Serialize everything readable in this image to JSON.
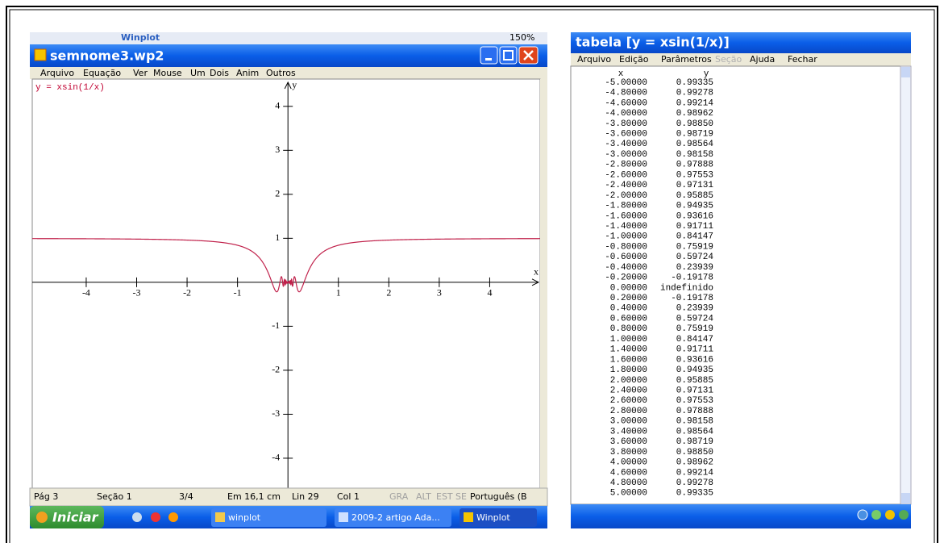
{
  "toolbar": {
    "app": "Winplot",
    "zoom": "150%"
  },
  "winplot": {
    "title": "semnome3.wp2",
    "menu": [
      "Arquivo",
      "Equação",
      "Ver",
      "Mouse",
      "Um",
      "Dois",
      "Anim",
      "Outros"
    ],
    "equation": "y = xsin(1/x)",
    "x_axis_label": "x",
    "y_axis_label": "y",
    "xlim": [
      -5.07,
      5.0
    ],
    "ylim": [
      -4.68,
      4.62
    ],
    "xticks": [
      -4,
      -3,
      -2,
      -1,
      1,
      2,
      3,
      4
    ],
    "yticks": [
      -4,
      -3,
      -2,
      -1,
      1,
      2,
      3,
      4
    ]
  },
  "status_bar": [
    "Pág 3",
    "Seção 1",
    "3/4",
    "Em 16,1 cm",
    "Lin 29",
    "Col 1",
    "GRA",
    "ALT",
    "EST",
    "SE",
    "Português (B"
  ],
  "taskbar": {
    "start": "Iniciar",
    "tasks": [
      "winplot",
      "2009-2 artigo Ada...",
      "Winplot"
    ]
  },
  "table_window": {
    "title": "tabela [y = xsin(1/x)]",
    "menu": [
      "Arquivo",
      "Edição",
      "Parâmetros",
      "Seção",
      "Ajuda",
      "Fechar"
    ],
    "columns": [
      "x",
      "y"
    ],
    "rows": [
      [
        "-5.00000",
        "0.99335"
      ],
      [
        "-4.80000",
        "0.99278"
      ],
      [
        "-4.60000",
        "0.99214"
      ],
      [
        "-4.00000",
        "0.98962"
      ],
      [
        "-3.80000",
        "0.98850"
      ],
      [
        "-3.60000",
        "0.98719"
      ],
      [
        "-3.40000",
        "0.98564"
      ],
      [
        "-3.00000",
        "0.98158"
      ],
      [
        "-2.80000",
        "0.97888"
      ],
      [
        "-2.60000",
        "0.97553"
      ],
      [
        "-2.40000",
        "0.97131"
      ],
      [
        "-2.00000",
        "0.95885"
      ],
      [
        "-1.80000",
        "0.94935"
      ],
      [
        "-1.60000",
        "0.93616"
      ],
      [
        "-1.40000",
        "0.91711"
      ],
      [
        "-1.00000",
        "0.84147"
      ],
      [
        "-0.80000",
        "0.75919"
      ],
      [
        "-0.60000",
        "0.59724"
      ],
      [
        "-0.40000",
        "0.23939"
      ],
      [
        "-0.20000",
        "-0.19178"
      ],
      [
        "0.00000",
        "indefinido"
      ],
      [
        "0.20000",
        "-0.19178"
      ],
      [
        "0.40000",
        "0.23939"
      ],
      [
        "0.60000",
        "0.59724"
      ],
      [
        "0.80000",
        "0.75919"
      ],
      [
        "1.00000",
        "0.84147"
      ],
      [
        "1.40000",
        "0.91711"
      ],
      [
        "1.60000",
        "0.93616"
      ],
      [
        "1.80000",
        "0.94935"
      ],
      [
        "2.00000",
        "0.95885"
      ],
      [
        "2.40000",
        "0.97131"
      ],
      [
        "2.60000",
        "0.97553"
      ],
      [
        "2.80000",
        "0.97888"
      ],
      [
        "3.00000",
        "0.98158"
      ],
      [
        "3.40000",
        "0.98564"
      ],
      [
        "3.60000",
        "0.98719"
      ],
      [
        "3.80000",
        "0.98850"
      ],
      [
        "4.00000",
        "0.98962"
      ],
      [
        "4.60000",
        "0.99214"
      ],
      [
        "4.80000",
        "0.99278"
      ],
      [
        "5.00000",
        "0.99335"
      ]
    ]
  }
}
